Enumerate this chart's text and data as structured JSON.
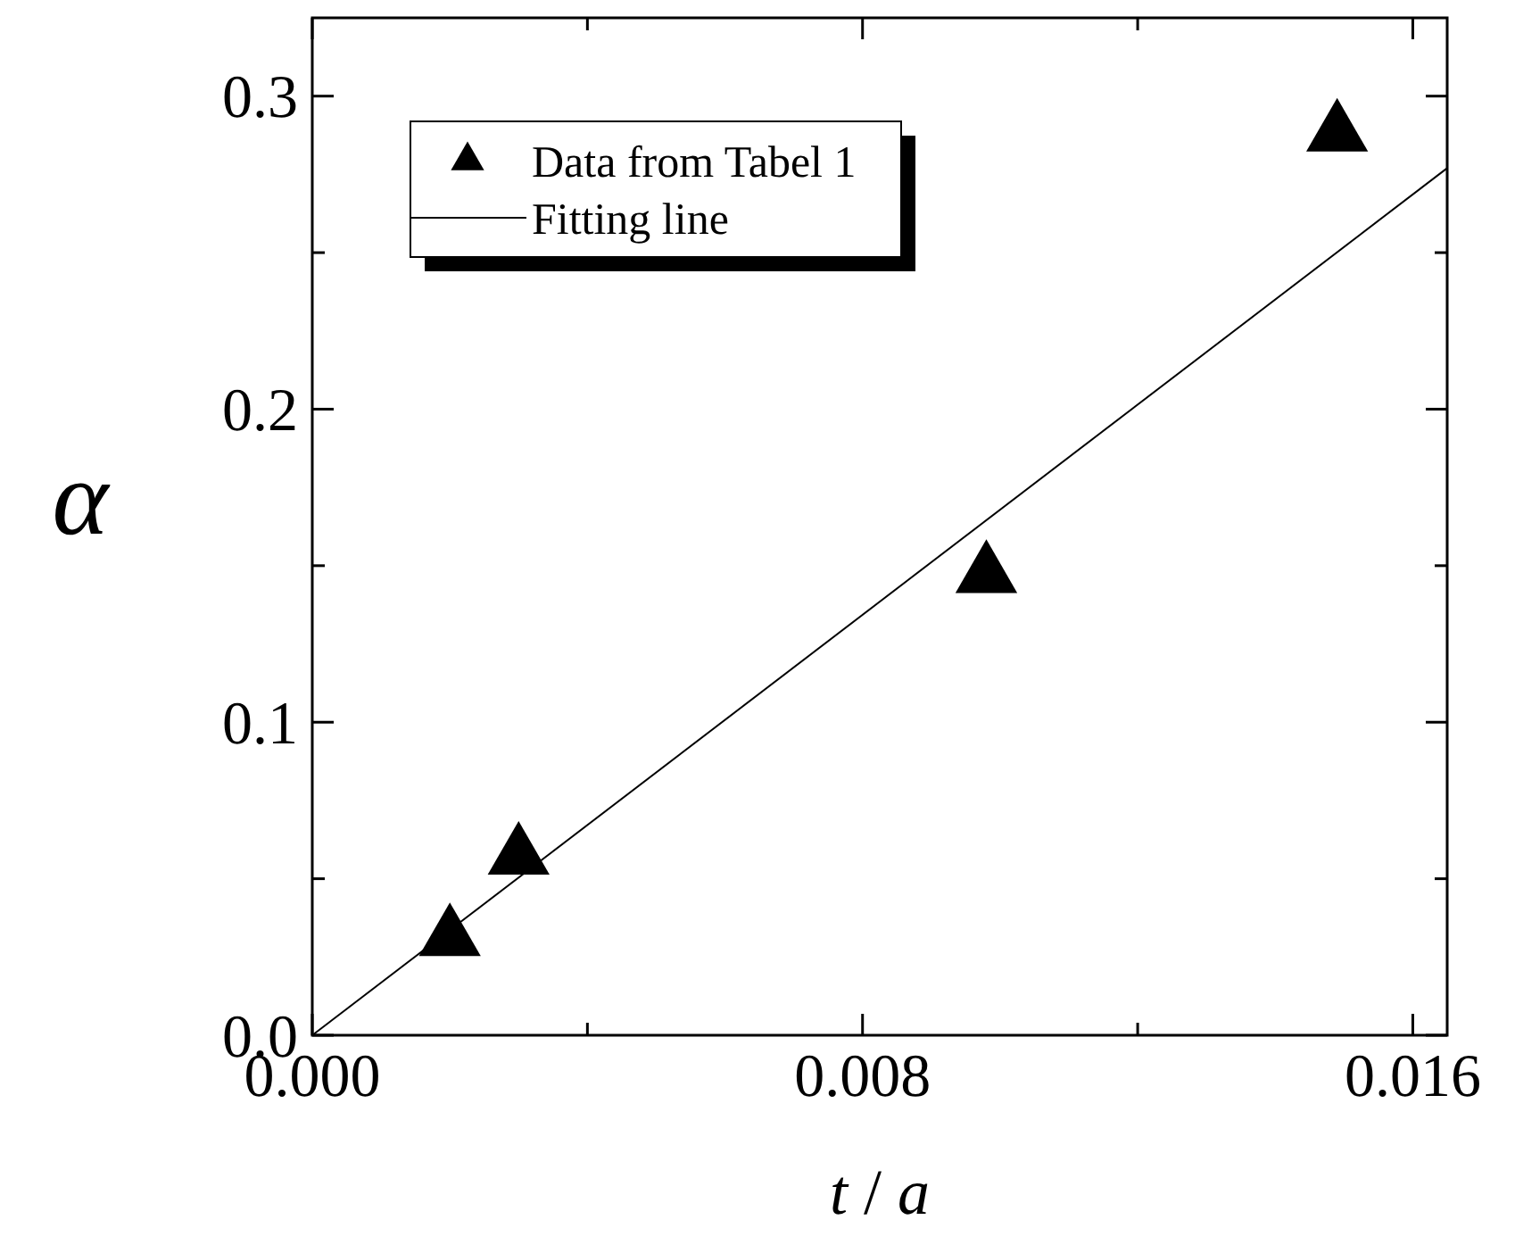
{
  "chart_data": {
    "type": "scatter",
    "xlabel": "t / a",
    "ylabel": "α",
    "xlim": [
      0,
      0.0165
    ],
    "ylim": [
      0,
      0.325
    ],
    "xticks": [
      {
        "value": 0,
        "label": "0.000"
      },
      {
        "value": 0.004,
        "label": null
      },
      0.008,
      {
        "value": 0.012,
        "label": null
      },
      0.016
    ],
    "yticks": [
      {
        "value": 0,
        "label": "0.0"
      },
      {
        "value": 0.05,
        "label": null
      },
      0.1,
      {
        "value": 0.15,
        "label": null
      },
      0.2,
      {
        "value": 0.25,
        "label": null
      },
      0.3
    ],
    "legend": "top left",
    "grid": false,
    "series": [
      {
        "name": "Data from Tabel 1",
        "marker": "triangle",
        "color": "#000000",
        "x": [
          0.002,
          0.003,
          0.0098,
          0.0149
        ],
        "values": [
          0.031,
          0.057,
          0.147,
          0.288
        ]
      },
      {
        "name": "Fitting line",
        "type": "line",
        "marker": "none",
        "line_style": "solid",
        "color": "#000000",
        "x": [
          0,
          0.0165
        ],
        "values": [
          0,
          0.277
        ]
      }
    ]
  }
}
